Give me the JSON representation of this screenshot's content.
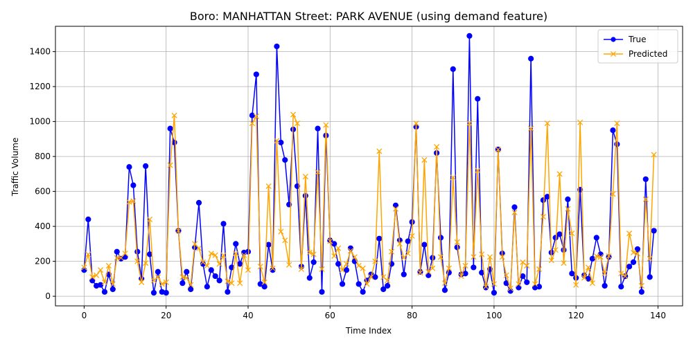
{
  "chart_data": {
    "type": "line",
    "title": "Boro: MANHATTAN Street: PARK AVENUE (using demand feature)",
    "xlabel": "Time Index",
    "ylabel": "Traffic Volume",
    "xlim": [
      -7,
      146
    ],
    "ylim": [
      -55,
      1545
    ],
    "xticks": [
      0,
      20,
      40,
      60,
      80,
      100,
      120,
      140
    ],
    "yticks": [
      0,
      200,
      400,
      600,
      800,
      1000,
      1200,
      1400
    ],
    "grid": true,
    "legend_position": "top-right",
    "x": [
      0,
      1,
      2,
      3,
      4,
      5,
      6,
      7,
      8,
      9,
      10,
      11,
      12,
      13,
      14,
      15,
      16,
      17,
      18,
      19,
      20,
      21,
      22,
      23,
      24,
      25,
      26,
      27,
      28,
      29,
      30,
      31,
      32,
      33,
      34,
      35,
      36,
      37,
      38,
      39,
      40,
      41,
      42,
      43,
      44,
      45,
      46,
      47,
      48,
      49,
      50,
      51,
      52,
      53,
      54,
      55,
      56,
      57,
      58,
      59,
      60,
      61,
      62,
      63,
      64,
      65,
      66,
      67,
      68,
      69,
      70,
      71,
      72,
      73,
      74,
      75,
      76,
      77,
      78,
      79,
      80,
      81,
      82,
      83,
      84,
      85,
      86,
      87,
      88,
      89,
      90,
      91,
      92,
      93,
      94,
      95,
      96,
      97,
      98,
      99,
      100,
      101,
      102,
      103,
      104,
      105,
      106,
      107,
      108,
      109,
      110,
      111,
      112,
      113,
      114,
      115,
      116,
      117,
      118,
      119,
      120,
      121,
      122,
      123,
      124,
      125,
      126,
      127,
      128,
      129,
      130,
      131,
      132,
      133,
      134,
      135,
      136,
      137,
      138,
      139
    ],
    "series": [
      {
        "name": "True",
        "color": "#0000ff",
        "marker": "circle",
        "values": [
          150,
          440,
          90,
          60,
          65,
          25,
          125,
          40,
          255,
          215,
          225,
          740,
          635,
          255,
          100,
          745,
          240,
          20,
          140,
          25,
          20,
          960,
          880,
          375,
          75,
          140,
          40,
          280,
          535,
          185,
          55,
          150,
          115,
          90,
          415,
          25,
          165,
          300,
          185,
          250,
          255,
          1035,
          1270,
          70,
          55,
          295,
          150,
          1430,
          880,
          780,
          525,
          955,
          630,
          170,
          575,
          105,
          195,
          960,
          25,
          920,
          320,
          300,
          185,
          70,
          150,
          275,
          200,
          70,
          25,
          90,
          125,
          110,
          330,
          40,
          60,
          185,
          520,
          320,
          125,
          315,
          425,
          970,
          140,
          295,
          120,
          220,
          820,
          335,
          35,
          135,
          1300,
          280,
          125,
          130,
          1490,
          165,
          1130,
          135,
          50,
          155,
          20,
          840,
          245,
          75,
          30,
          510,
          50,
          115,
          80,
          1360,
          50,
          55,
          550,
          570,
          250,
          335,
          355,
          265,
          555,
          130,
          105,
          610,
          120,
          100,
          215,
          335,
          240,
          60,
          225,
          950,
          870,
          55,
          115,
          170,
          195,
          270,
          25,
          670,
          110,
          375
        ]
      },
      {
        "name": "Predicted",
        "color": "#ffa500",
        "marker": "x",
        "values": [
          165,
          240,
          110,
          120,
          150,
          80,
          175,
          70,
          220,
          220,
          245,
          540,
          545,
          200,
          80,
          190,
          440,
          90,
          110,
          70,
          80,
          750,
          1035,
          375,
          110,
          105,
          65,
          300,
          275,
          195,
          175,
          245,
          235,
          185,
          235,
          85,
          75,
          245,
          75,
          235,
          150,
          990,
          1030,
          170,
          80,
          630,
          160,
          890,
          370,
          320,
          180,
          1040,
          990,
          155,
          685,
          250,
          240,
          710,
          155,
          980,
          315,
          230,
          275,
          150,
          185,
          260,
          225,
          175,
          160,
          70,
          110,
          200,
          830,
          110,
          90,
          255,
          500,
          300,
          220,
          245,
          345,
          990,
          135,
          780,
          140,
          160,
          855,
          225,
          75,
          160,
          680,
          310,
          115,
          175,
          990,
          225,
          720,
          240,
          55,
          225,
          70,
          840,
          225,
          120,
          45,
          480,
          70,
          195,
          175,
          960,
          70,
          155,
          455,
          990,
          205,
          265,
          700,
          190,
          500,
          360,
          65,
          995,
          105,
          165,
          75,
          230,
          225,
          130,
          230,
          585,
          990,
          130,
          115,
          360,
          250,
          245,
          60,
          555,
          215,
          810
        ]
      }
    ]
  }
}
